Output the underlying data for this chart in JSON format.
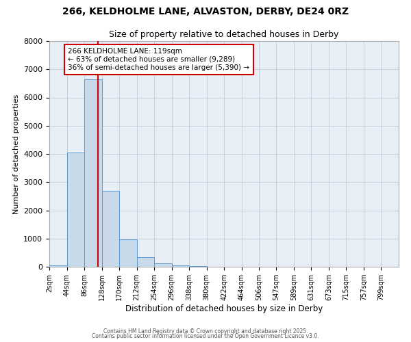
{
  "title": "266, KELDHOLME LANE, ALVASTON, DERBY, DE24 0RZ",
  "subtitle": "Size of property relative to detached houses in Derby",
  "xlabel": "Distribution of detached houses by size in Derby",
  "ylabel": "Number of detached properties",
  "bin_edges": [
    2,
    44,
    86,
    128,
    170,
    212,
    254,
    296,
    338,
    380,
    422,
    464,
    506,
    547,
    589,
    631,
    673,
    715,
    757,
    799,
    841
  ],
  "bar_heights": [
    50,
    4050,
    6650,
    2700,
    970,
    340,
    130,
    60,
    20,
    8,
    3,
    2,
    0,
    0,
    0,
    0,
    0,
    0,
    0,
    0
  ],
  "bar_color": "#c8d9ea",
  "bar_edgecolor": "#5b9bd5",
  "red_line_x": 119,
  "annotation_title": "266 KELDHOLME LANE: 119sqm",
  "annotation_line2": "← 63% of detached houses are smaller (9,289)",
  "annotation_line3": "36% of semi-detached houses are larger (5,390) →",
  "annotation_box_color": "#ffffff",
  "annotation_box_edgecolor": "#cc0000",
  "red_line_color": "#cc0000",
  "ylim": [
    0,
    8000
  ],
  "xlim": [
    2,
    841
  ],
  "fig_facecolor": "#ffffff",
  "plot_facecolor": "#e8eef5",
  "grid_color": "#c0ccd8",
  "footer_line1": "Contains HM Land Registry data © Crown copyright and database right 2025.",
  "footer_line2": "Contains public sector information licensed under the Open Government Licence v3.0."
}
